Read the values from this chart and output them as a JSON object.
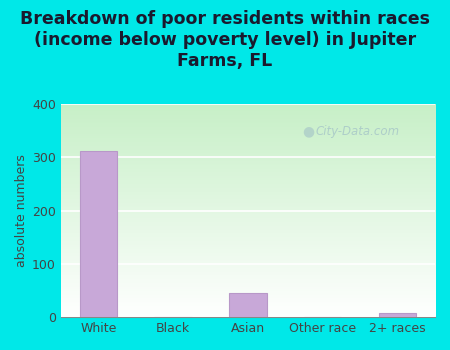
{
  "categories": [
    "White",
    "Black",
    "Asian",
    "Other race",
    "2+ races"
  ],
  "values": [
    311,
    0,
    45,
    0,
    8
  ],
  "bar_color": "#c8a8d8",
  "bar_edgecolor": "#b898c8",
  "title": "Breakdown of poor residents within races\n(income below poverty level) in Jupiter\nFarms, FL",
  "ylabel": "absolute numbers",
  "ylim": [
    0,
    400
  ],
  "yticks": [
    0,
    100,
    200,
    300,
    400
  ],
  "background_color": "#00e8e8",
  "plot_bg_top": "#c8e8c0",
  "plot_bg_bottom": "#f0faf0",
  "grid_color": "#d0e8d0",
  "title_fontsize": 12.5,
  "ylabel_fontsize": 9,
  "tick_fontsize": 9,
  "watermark": "City-Data.com",
  "watermark_color": "#a8c8c8",
  "title_color": "#1a1a2e"
}
